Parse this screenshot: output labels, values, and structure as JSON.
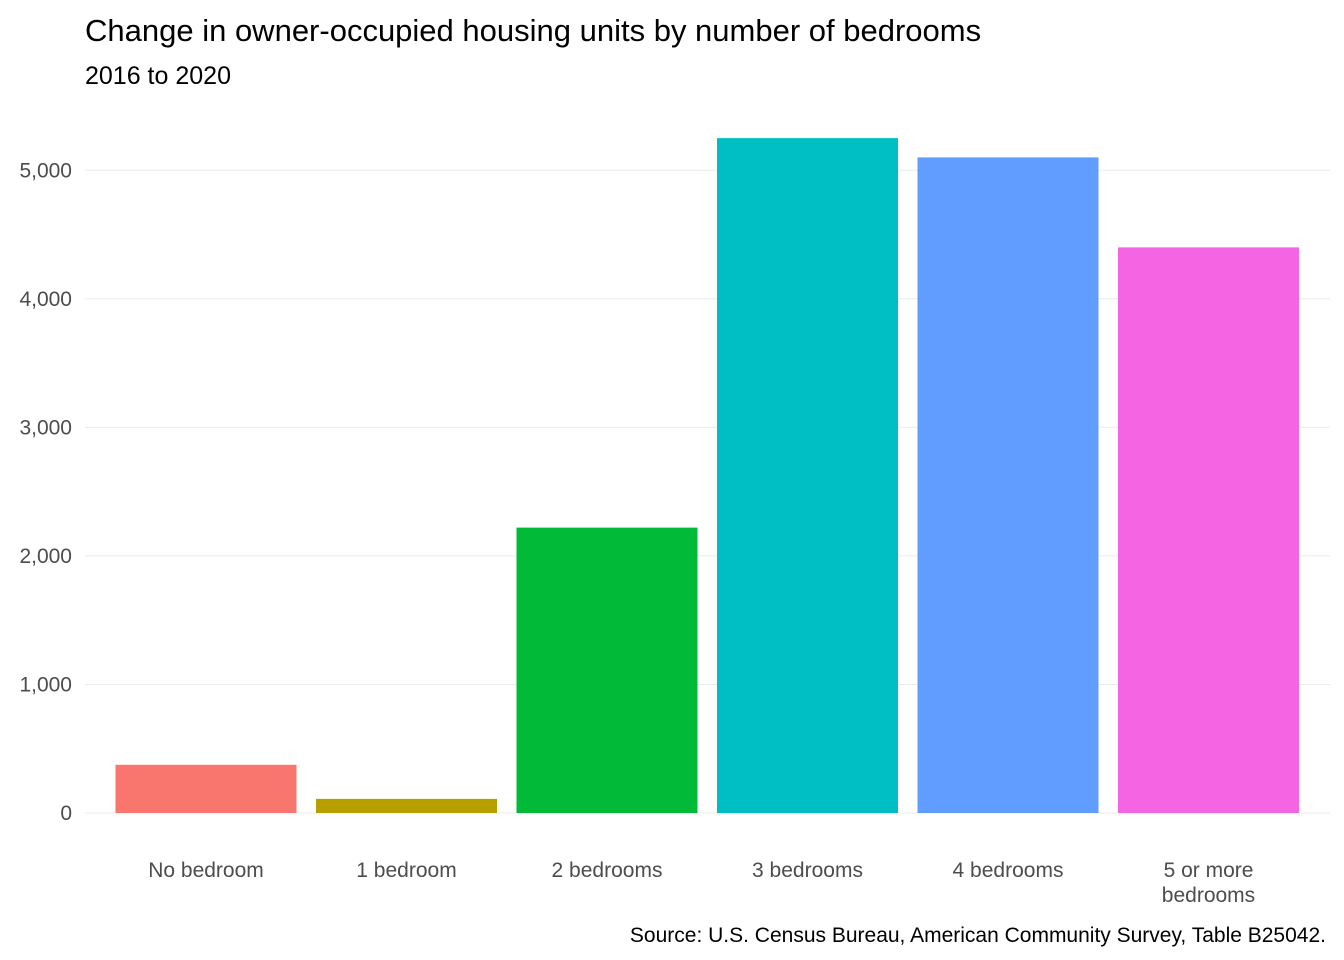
{
  "chart_data": {
    "type": "bar",
    "title": "Change in owner-occupied housing units by number of bedrooms",
    "subtitle": "2016 to 2020",
    "caption": "Source: U.S. Census Bureau, American Community Survey, Table B25042.",
    "xlabel": "",
    "ylabel": "",
    "categories": [
      "No bedroom",
      "1 bedroom",
      "2 bedrooms",
      "3 bedrooms",
      "4 bedrooms",
      "5 or more bedrooms"
    ],
    "category_label_lines": [
      [
        "No bedroom"
      ],
      [
        "1 bedroom"
      ],
      [
        "2 bedrooms"
      ],
      [
        "3 bedrooms"
      ],
      [
        "4 bedrooms"
      ],
      [
        "5 or more",
        "bedrooms"
      ]
    ],
    "values": [
      375,
      110,
      2220,
      5250,
      5100,
      4400
    ],
    "colors": [
      "#F8766D",
      "#B79F00",
      "#00BA38",
      "#00BFC4",
      "#619CFF",
      "#F564E3"
    ],
    "y_ticks": [
      0,
      1000,
      2000,
      3000,
      4000,
      5000
    ],
    "y_tick_labels": [
      "0",
      "1,000",
      "2,000",
      "3,000",
      "4,000",
      "5,000"
    ],
    "ylim": [
      0,
      5250
    ],
    "grid": true,
    "legend": "none"
  }
}
